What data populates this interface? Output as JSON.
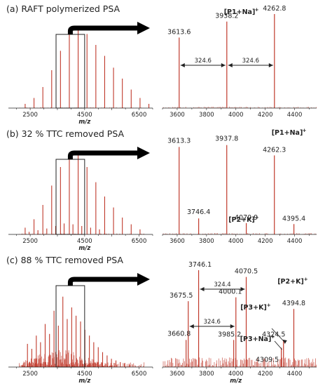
{
  "chart_data": [
    {
      "id": "a",
      "type": "line",
      "title": "(a) RAFT polymerized PSA",
      "overview": {
        "xlabel": "m/z",
        "xlim": [
          1700,
          7000
        ],
        "xticks": [
          2500,
          4500,
          6500
        ],
        "zoom_window": [
          3450,
          4500
        ],
        "peaks": [
          {
            "x": 2315,
            "y": 0.05
          },
          {
            "x": 2640,
            "y": 0.12
          },
          {
            "x": 2965,
            "y": 0.25
          },
          {
            "x": 3290,
            "y": 0.45
          },
          {
            "x": 3613,
            "y": 0.68
          },
          {
            "x": 3938,
            "y": 0.88
          },
          {
            "x": 4262,
            "y": 0.95
          },
          {
            "x": 4587,
            "y": 0.88
          },
          {
            "x": 4912,
            "y": 0.75
          },
          {
            "x": 5236,
            "y": 0.62
          },
          {
            "x": 5561,
            "y": 0.48
          },
          {
            "x": 5885,
            "y": 0.35
          },
          {
            "x": 6210,
            "y": 0.22
          },
          {
            "x": 6535,
            "y": 0.12
          },
          {
            "x": 6860,
            "y": 0.05
          }
        ]
      },
      "zoom": {
        "xlim": [
          3500,
          4550
        ],
        "xticks": [
          3600,
          3800,
          4000,
          4200,
          4400
        ],
        "peaks": [
          {
            "x": 3613.6,
            "y": 0.75,
            "label": "3613.6"
          },
          {
            "x": 3938.2,
            "y": 0.92,
            "label": "3938.2"
          },
          {
            "x": 4262.8,
            "y": 1.0,
            "label": "4262.8"
          }
        ],
        "annotations": [
          {
            "text": "[P1+Na]",
            "sup": "+",
            "peak_x": 3938.2
          }
        ],
        "distances": [
          {
            "from": 3613.6,
            "to": 3938.2,
            "label": "324.6"
          },
          {
            "from": 3938.2,
            "to": 4262.8,
            "label": "324.6"
          }
        ]
      }
    },
    {
      "id": "b",
      "type": "line",
      "title": "(b) 32 % TTC removed PSA",
      "overview": {
        "xlabel": "m/z",
        "xlim": [
          1700,
          7000
        ],
        "xticks": [
          2500,
          4500,
          6500
        ],
        "zoom_window": [
          3450,
          4500
        ],
        "peaks": [
          {
            "x": 2315,
            "y": 0.08
          },
          {
            "x": 2640,
            "y": 0.18
          },
          {
            "x": 2965,
            "y": 0.35
          },
          {
            "x": 3290,
            "y": 0.58
          },
          {
            "x": 3613,
            "y": 0.8
          },
          {
            "x": 3938,
            "y": 0.96
          },
          {
            "x": 4262,
            "y": 0.94
          },
          {
            "x": 4587,
            "y": 0.8
          },
          {
            "x": 4912,
            "y": 0.62
          },
          {
            "x": 5236,
            "y": 0.45
          },
          {
            "x": 5561,
            "y": 0.32
          },
          {
            "x": 5885,
            "y": 0.2
          },
          {
            "x": 6210,
            "y": 0.12
          },
          {
            "x": 6535,
            "y": 0.06
          },
          {
            "x": 2460,
            "y": 0.03
          },
          {
            "x": 2785,
            "y": 0.05
          },
          {
            "x": 3110,
            "y": 0.07
          },
          {
            "x": 3435,
            "y": 0.1
          },
          {
            "x": 3746,
            "y": 0.13
          },
          {
            "x": 4071,
            "y": 0.12
          },
          {
            "x": 4395,
            "y": 0.1
          },
          {
            "x": 4720,
            "y": 0.08
          },
          {
            "x": 5045,
            "y": 0.06
          }
        ]
      },
      "zoom": {
        "xlim": [
          3500,
          4550
        ],
        "xticks": [
          3600,
          3800,
          4000,
          4200,
          4400
        ],
        "peaks": [
          {
            "x": 3613.3,
            "y": 0.93,
            "label": "3613.3"
          },
          {
            "x": 3746.4,
            "y": 0.17,
            "label": "3746.4"
          },
          {
            "x": 3937.8,
            "y": 0.95,
            "label": "3937.8"
          },
          {
            "x": 4070.9,
            "y": 0.12,
            "label": "4070.9"
          },
          {
            "x": 4262.3,
            "y": 0.84,
            "label": "4262.3"
          },
          {
            "x": 4395.4,
            "y": 0.11,
            "label": "4395.4"
          }
        ],
        "annotations": [
          {
            "text": "[P1+Na]",
            "sup": "+",
            "peak_x": 4262.3
          },
          {
            "text": "[P2+K]",
            "sup": "+",
            "peak_x": 4070.9
          }
        ]
      }
    },
    {
      "id": "c",
      "type": "line",
      "title": "(c) 88 % TTC removed PSA",
      "overview": {
        "xlabel": "m/z",
        "xlim": [
          1700,
          7000
        ],
        "xticks": [
          2500,
          4500,
          6500
        ],
        "zoom_window": [
          3450,
          4500
        ],
        "peaks": [
          {
            "x": 2400,
            "y": 0.28
          },
          {
            "x": 2560,
            "y": 0.22
          },
          {
            "x": 2725,
            "y": 0.38
          },
          {
            "x": 2880,
            "y": 0.3
          },
          {
            "x": 3050,
            "y": 0.52
          },
          {
            "x": 3210,
            "y": 0.4
          },
          {
            "x": 3375,
            "y": 0.68
          },
          {
            "x": 3535,
            "y": 0.5
          },
          {
            "x": 3700,
            "y": 0.85
          },
          {
            "x": 3860,
            "y": 0.58
          },
          {
            "x": 4025,
            "y": 0.72
          },
          {
            "x": 4185,
            "y": 0.62
          },
          {
            "x": 4350,
            "y": 0.55
          },
          {
            "x": 4510,
            "y": 0.45
          },
          {
            "x": 4675,
            "y": 0.38
          },
          {
            "x": 4835,
            "y": 0.3
          },
          {
            "x": 5000,
            "y": 0.24
          },
          {
            "x": 5160,
            "y": 0.18
          },
          {
            "x": 5325,
            "y": 0.14
          },
          {
            "x": 5485,
            "y": 0.1
          },
          {
            "x": 5650,
            "y": 0.08
          },
          {
            "x": 5810,
            "y": 0.06
          },
          {
            "x": 5975,
            "y": 0.05
          },
          {
            "x": 6135,
            "y": 0.04
          }
        ]
      },
      "zoom": {
        "xlim": [
          3500,
          4550
        ],
        "xticks": [
          3600,
          3800,
          4000,
          4200,
          4400
        ],
        "peaks": [
          {
            "x": 3660.8,
            "y": 0.28,
            "label": "3660.8"
          },
          {
            "x": 3675.5,
            "y": 0.68,
            "label": "3675.5"
          },
          {
            "x": 3746.1,
            "y": 1.0,
            "label": "3746.1"
          },
          {
            "x": 3985.2,
            "y": 0.28,
            "label": "3985.2"
          },
          {
            "x": 4000.1,
            "y": 0.72,
            "label": "4000.1"
          },
          {
            "x": 4070.5,
            "y": 0.93,
            "label": "4070.5"
          },
          {
            "x": 4309.5,
            "y": 0.2,
            "label": "4309.5"
          },
          {
            "x": 4324.5,
            "y": 0.28,
            "label": "4324.5"
          },
          {
            "x": 4394.8,
            "y": 0.6,
            "label": "4394.8"
          }
        ],
        "annotations": [
          {
            "text": "[P2+K]",
            "sup": "+",
            "peak_x": 4394.8
          },
          {
            "text": "[P3+K]",
            "sup": "+",
            "peak_x": 4324.5
          },
          {
            "text": "[P3+Na]",
            "sup": "+",
            "peak_x": 4309.5
          }
        ],
        "distances": [
          {
            "from": 3746.1,
            "to": 4070.5,
            "label": "324.4"
          },
          {
            "from": 3675.5,
            "to": 4000.1,
            "label": "324.6"
          }
        ]
      }
    }
  ],
  "colors": {
    "peak": "#c0392b",
    "axis": "#222222",
    "arrow": "#000000"
  }
}
